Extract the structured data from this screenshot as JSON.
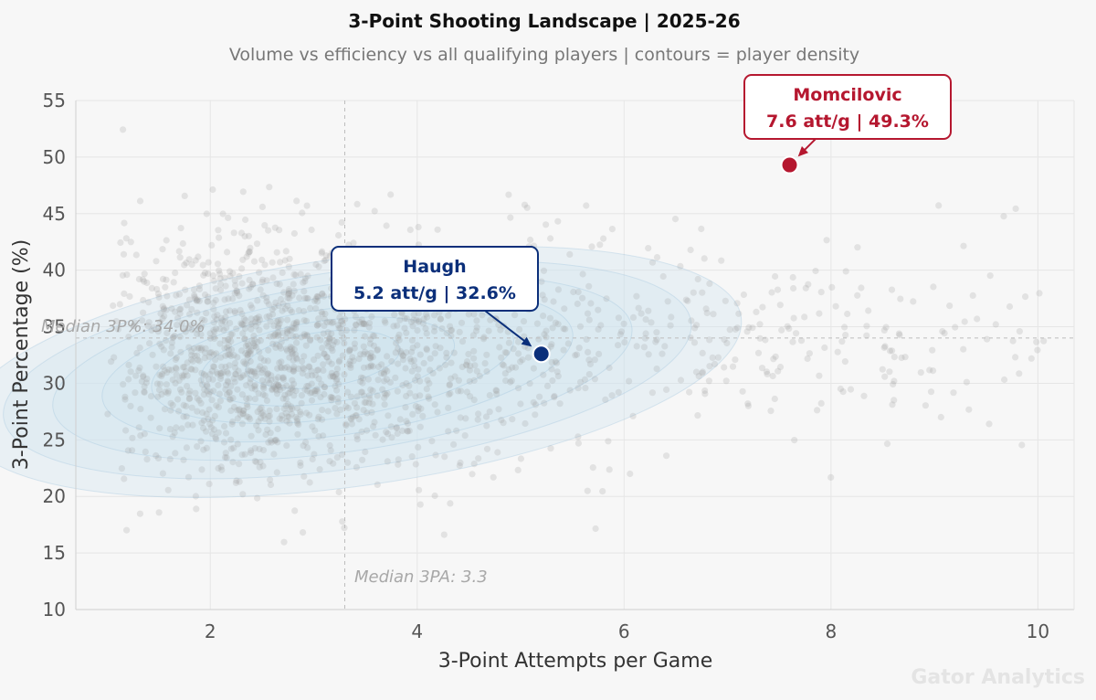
{
  "chart_data": {
    "type": "scatter",
    "title": "3-Point Shooting Landscape  |  2025-26",
    "subtitle": "Volume vs efficiency vs all qualifying players  |  contours = player density",
    "xlabel": "3-Point Attempts per Game",
    "ylabel": "3-Point Percentage (%)",
    "xlim": [
      0.7,
      10.35
    ],
    "ylim": [
      10,
      55
    ],
    "x_ticks": [
      2,
      4,
      6,
      8,
      10
    ],
    "y_ticks": [
      10,
      15,
      20,
      25,
      30,
      35,
      40,
      45,
      50,
      55
    ],
    "grid": true,
    "reference_lines": {
      "median_3pa": {
        "value": 3.3,
        "label": "Median 3PA: 3.3"
      },
      "median_3p_pct": {
        "value": 34.0,
        "label": "Median 3P%: 34.0%"
      }
    },
    "density_center": {
      "x": 3.0,
      "y": 32.0
    },
    "background_points_note_count": 1800,
    "highlights": [
      {
        "name": "Haugh",
        "detail": "5.2 att/g  |  32.6%",
        "x": 5.2,
        "y": 32.6,
        "color": "#0b2f7a"
      },
      {
        "name": "Momcilovic",
        "detail": "7.6 att/g  |  49.3%",
        "x": 7.6,
        "y": 49.3,
        "color": "#b5172f"
      }
    ],
    "watermark": "Gator Analytics"
  },
  "colors": {
    "background": "#f7f7f7",
    "points": "#9a9a9a",
    "contour_fill": "#cfe3ef",
    "contour_line": "#9ec3dc",
    "haugh": "#0b2f7a",
    "momcilovic": "#b5172f"
  }
}
